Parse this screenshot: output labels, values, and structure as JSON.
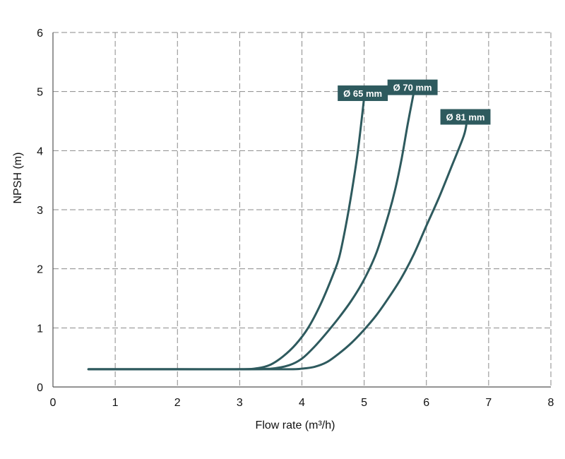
{
  "chart_data": {
    "type": "line",
    "xlabel": "Flow rate (m³/h)",
    "ylabel": "NPSH (m)",
    "xlim": [
      0,
      8
    ],
    "ylim": [
      0,
      6
    ],
    "x_ticks": [
      "0",
      "1",
      "2",
      "3",
      "4",
      "5",
      "6",
      "7",
      "8"
    ],
    "y_ticks": [
      "0",
      "1",
      "2",
      "3",
      "4",
      "5",
      "6"
    ],
    "grid": true,
    "line_color": "#2e5a5e",
    "label_bg_color": "#2e5a5e",
    "series": [
      {
        "name": "Ø 65 mm",
        "points": [
          [
            0.57,
            0.3
          ],
          [
            1.0,
            0.3
          ],
          [
            2.0,
            0.3
          ],
          [
            3.0,
            0.3
          ],
          [
            3.3,
            0.32
          ],
          [
            3.5,
            0.38
          ],
          [
            3.7,
            0.52
          ],
          [
            3.9,
            0.72
          ],
          [
            4.1,
            1.0
          ],
          [
            4.3,
            1.4
          ],
          [
            4.5,
            1.9
          ],
          [
            4.6,
            2.2
          ],
          [
            4.7,
            2.7
          ],
          [
            4.8,
            3.3
          ],
          [
            4.9,
            4.0
          ],
          [
            5.0,
            4.9
          ]
        ]
      },
      {
        "name": "Ø 70 mm",
        "points": [
          [
            0.57,
            0.3
          ],
          [
            1.0,
            0.3
          ],
          [
            2.0,
            0.3
          ],
          [
            3.0,
            0.3
          ],
          [
            3.5,
            0.31
          ],
          [
            3.8,
            0.37
          ],
          [
            4.0,
            0.48
          ],
          [
            4.2,
            0.68
          ],
          [
            4.4,
            0.92
          ],
          [
            4.6,
            1.18
          ],
          [
            4.8,
            1.47
          ],
          [
            5.0,
            1.82
          ],
          [
            5.2,
            2.28
          ],
          [
            5.4,
            2.95
          ],
          [
            5.5,
            3.35
          ],
          [
            5.6,
            3.85
          ],
          [
            5.7,
            4.45
          ],
          [
            5.8,
            5.0
          ]
        ]
      },
      {
        "name": "Ø 81 mm",
        "points": [
          [
            0.57,
            0.3
          ],
          [
            1.0,
            0.3
          ],
          [
            2.0,
            0.3
          ],
          [
            3.0,
            0.3
          ],
          [
            3.8,
            0.3
          ],
          [
            4.0,
            0.31
          ],
          [
            4.2,
            0.34
          ],
          [
            4.4,
            0.42
          ],
          [
            4.6,
            0.57
          ],
          [
            4.8,
            0.75
          ],
          [
            5.0,
            0.97
          ],
          [
            5.2,
            1.22
          ],
          [
            5.4,
            1.52
          ],
          [
            5.6,
            1.85
          ],
          [
            5.8,
            2.25
          ],
          [
            6.0,
            2.73
          ],
          [
            6.2,
            3.2
          ],
          [
            6.4,
            3.72
          ],
          [
            6.6,
            4.25
          ],
          [
            6.65,
            4.5
          ]
        ]
      }
    ]
  }
}
